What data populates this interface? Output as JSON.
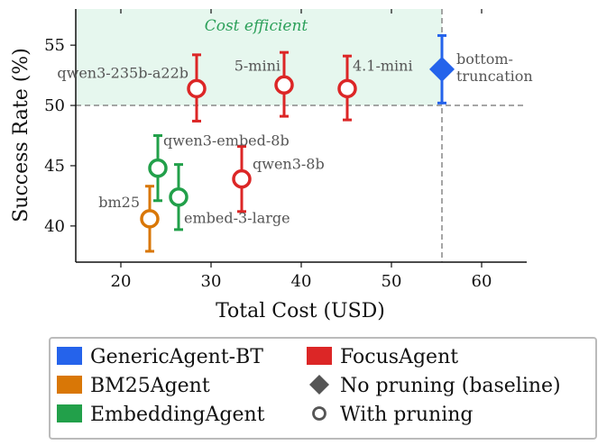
{
  "chart_data": {
    "type": "scatter",
    "xlabel": "Total Cost (USD)",
    "ylabel": "Success Rate (%)",
    "xlim": [
      15,
      65
    ],
    "ylim": [
      37,
      58
    ],
    "x_ticks": [
      20,
      30,
      40,
      50,
      60
    ],
    "y_ticks": [
      40,
      45,
      50,
      55
    ],
    "grid": false,
    "region": {
      "label": "Cost efficient",
      "x_max": 55.6,
      "y_min": 50,
      "color": "#e6f7ee",
      "line_color": "#888888"
    },
    "colors": {
      "GenericAgent-BT": "#2563eb",
      "BM25Agent": "#d97706",
      "EmbeddingAgent": "#22a04a",
      "FocusAgent": "#dc2626"
    },
    "points": [
      {
        "agent": "GenericAgent-BT",
        "label": "bottom-\ntruncation",
        "x": 55.6,
        "y": 53.0,
        "err_low": 50.2,
        "err_high": 55.8,
        "marker": "diamond"
      },
      {
        "agent": "FocusAgent",
        "label": "qwen3-235b-a22b",
        "x": 28.4,
        "y": 51.4,
        "err_low": 48.7,
        "err_high": 54.2,
        "marker": "circle"
      },
      {
        "agent": "FocusAgent",
        "label": "5-mini",
        "x": 38.1,
        "y": 51.7,
        "err_low": 49.1,
        "err_high": 54.4,
        "marker": "circle"
      },
      {
        "agent": "FocusAgent",
        "label": "4.1-mini",
        "x": 45.1,
        "y": 51.4,
        "err_low": 48.8,
        "err_high": 54.1,
        "marker": "circle"
      },
      {
        "agent": "FocusAgent",
        "label": "qwen3-8b",
        "x": 33.4,
        "y": 43.9,
        "err_low": 41.2,
        "err_high": 46.6,
        "marker": "circle"
      },
      {
        "agent": "EmbeddingAgent",
        "label": "qwen3-embed-8b",
        "x": 24.1,
        "y": 44.8,
        "err_low": 42.1,
        "err_high": 47.5,
        "marker": "circle"
      },
      {
        "agent": "EmbeddingAgent",
        "label": "embed-3-large",
        "x": 26.4,
        "y": 42.4,
        "err_low": 39.7,
        "err_high": 45.1,
        "marker": "circle"
      },
      {
        "agent": "BM25Agent",
        "label": "bm25",
        "x": 23.2,
        "y": 40.6,
        "err_low": 37.9,
        "err_high": 43.3,
        "marker": "circle"
      }
    ],
    "legend": [
      {
        "label": "GenericAgent-BT",
        "kind": "color",
        "color": "#2563eb"
      },
      {
        "label": "FocusAgent",
        "kind": "color",
        "color": "#dc2626"
      },
      {
        "label": "BM25Agent",
        "kind": "color",
        "color": "#d97706"
      },
      {
        "label": "No pruning (baseline)",
        "kind": "diamond",
        "color": "#555555"
      },
      {
        "label": "EmbeddingAgent",
        "kind": "color",
        "color": "#22a04a"
      },
      {
        "label": "With pruning",
        "kind": "circle",
        "color": "#555555"
      }
    ]
  }
}
